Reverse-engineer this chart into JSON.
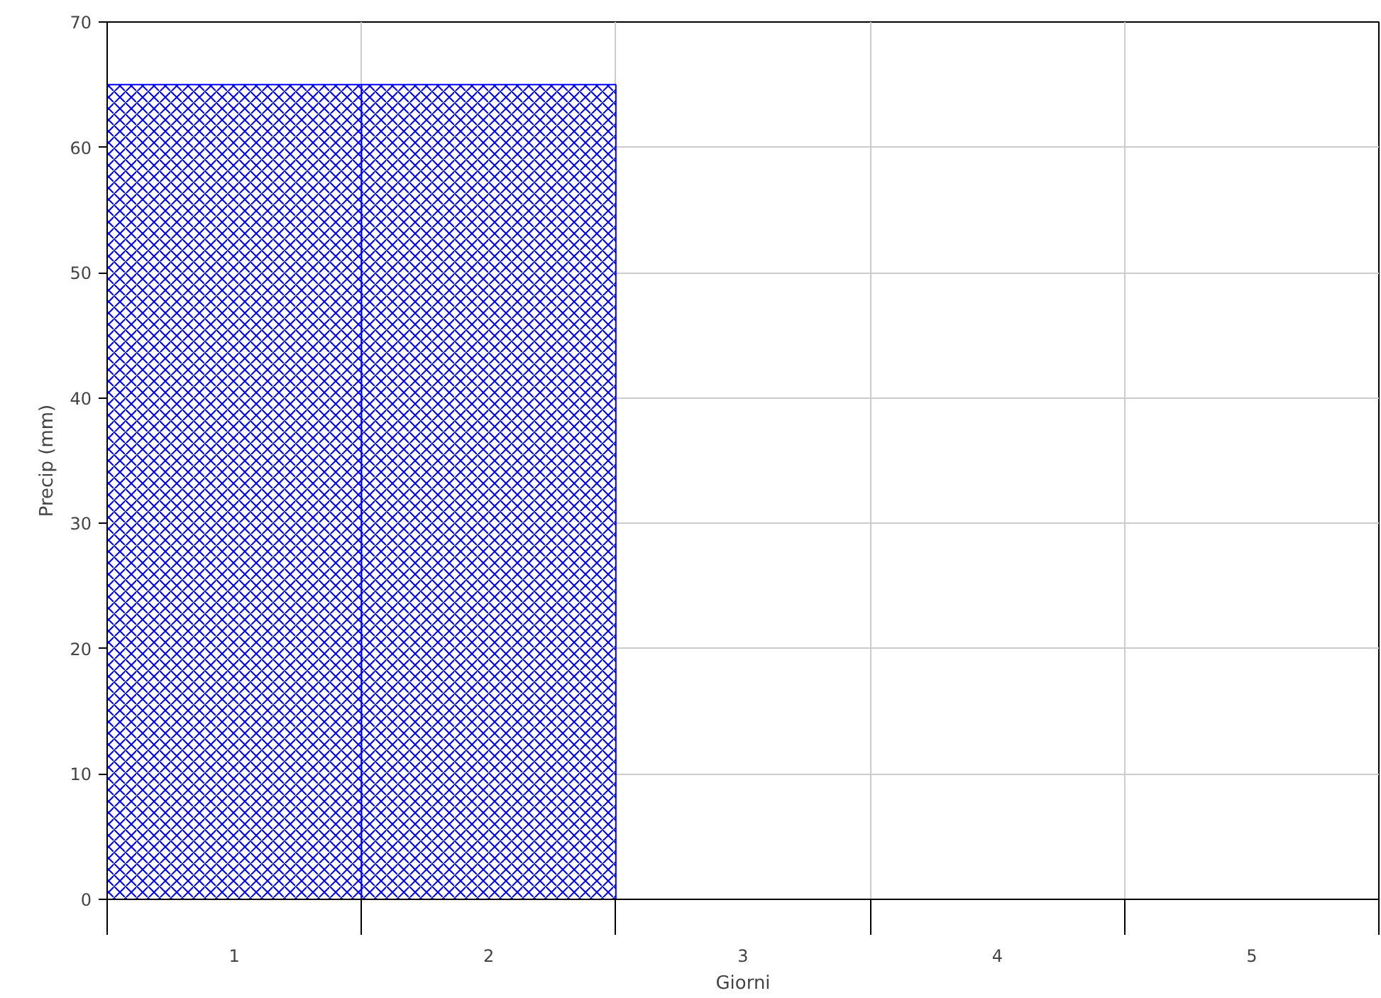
{
  "chart_data": {
    "type": "bar",
    "categories": [
      "1",
      "2",
      "3",
      "4",
      "5"
    ],
    "values": [
      65,
      65,
      0,
      0,
      0
    ],
    "color": "#0000ff",
    "xlabel": "Giorni",
    "ylabel": "Precip (mm)",
    "ylim": [
      0,
      70
    ],
    "yticks": [
      0,
      10,
      20,
      30,
      40,
      50,
      60,
      70
    ],
    "grid": true
  }
}
